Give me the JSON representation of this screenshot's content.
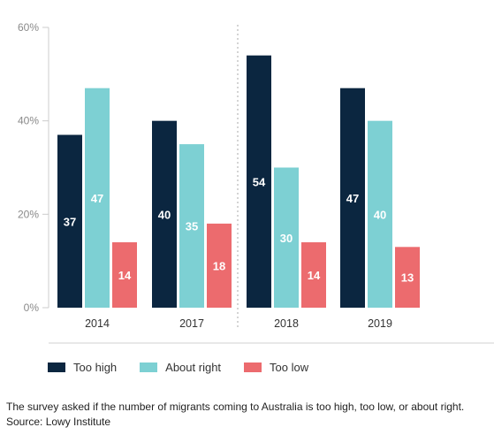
{
  "chart_data": {
    "type": "bar",
    "categories": [
      "2014",
      "2017",
      "2018",
      "2019"
    ],
    "series": [
      {
        "name": "Too high",
        "color": "#0b2640",
        "values": [
          37,
          40,
          54,
          47
        ]
      },
      {
        "name": "About right",
        "color": "#7dd0d3",
        "values": [
          47,
          35,
          30,
          40
        ]
      },
      {
        "name": "Too low",
        "color": "#ec6b6e",
        "values": [
          14,
          18,
          14,
          13
        ]
      }
    ],
    "ylim": [
      0,
      60
    ],
    "yticks": [
      "0%",
      "20%",
      "40%",
      "60%"
    ],
    "ytick_values": [
      0,
      20,
      40,
      60
    ],
    "grid": false,
    "legend_position": "bottom-left",
    "divider_after_category": "2017"
  },
  "caption": {
    "text": "The survey asked if the number of migrants coming to Australia is too high, too low, or about right.",
    "source": "Source: Lowy Institute"
  }
}
